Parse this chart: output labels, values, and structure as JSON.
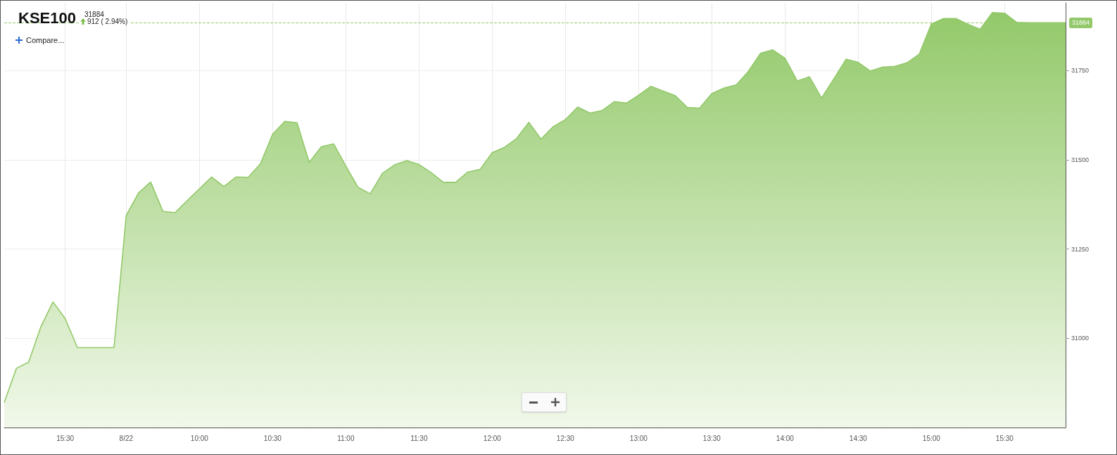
{
  "chart_data": {
    "type": "area",
    "title": "KSE100",
    "subtitle": "31884",
    "annotations": [
      "912 ( 2.94%)",
      "Compare..."
    ],
    "categories": [
      null,
      null,
      null,
      null,
      null,
      "15:30",
      null,
      null,
      null,
      null,
      "8/22",
      null,
      null,
      null,
      null,
      null,
      "10:00",
      null,
      null,
      null,
      null,
      null,
      "10:30",
      null,
      null,
      null,
      null,
      null,
      "11:00",
      null,
      null,
      null,
      null,
      null,
      "11:30",
      null,
      null,
      null,
      null,
      null,
      "12:00",
      null,
      null,
      null,
      null,
      null,
      "12:30",
      null,
      null,
      null,
      null,
      null,
      "13:00",
      null,
      null,
      null,
      null,
      null,
      "13:30",
      null,
      null,
      null,
      null,
      null,
      "14:00",
      null,
      null,
      null,
      null,
      null,
      "14:30",
      null,
      null,
      null,
      null,
      null,
      "15:00",
      null,
      null,
      null,
      null,
      null,
      "15:30",
      null,
      null,
      null,
      null,
      null
    ],
    "values": [
      30820,
      30916,
      30933,
      31032,
      31102,
      31055,
      30974,
      30974,
      30974,
      30974,
      31344,
      31407,
      31438,
      31356,
      31352,
      31386,
      31419,
      31452,
      31425,
      31452,
      31451,
      31489,
      31572,
      31608,
      31604,
      31493,
      31537,
      31545,
      31483,
      31423,
      31405,
      31462,
      31486,
      31498,
      31487,
      31464,
      31437,
      31437,
      31466,
      31473,
      31520,
      31535,
      31560,
      31605,
      31558,
      31593,
      31613,
      31648,
      31631,
      31638,
      31663,
      31659,
      31681,
      31706,
      31693,
      31680,
      31647,
      31645,
      31686,
      31701,
      31710,
      31748,
      31799,
      31808,
      31785,
      31721,
      31733,
      31673,
      31727,
      31782,
      31773,
      31749,
      31760,
      31762,
      31772,
      31796,
      31881,
      31896,
      31896,
      31880,
      31866,
      31913,
      31911,
      31885,
      31884,
      31884,
      31884,
      31884
    ],
    "color": "#93c96a",
    "ylim": [
      30750,
      31940
    ],
    "yticks": [
      31000,
      31250,
      31500,
      31750
    ],
    "grid": true,
    "marker": "none",
    "line_style": "solid",
    "ref_lines": [
      {
        "axis": "y",
        "value": 31884,
        "label": "31884",
        "color": "#93c96a",
        "line_style": "dashed"
      }
    ]
  }
}
